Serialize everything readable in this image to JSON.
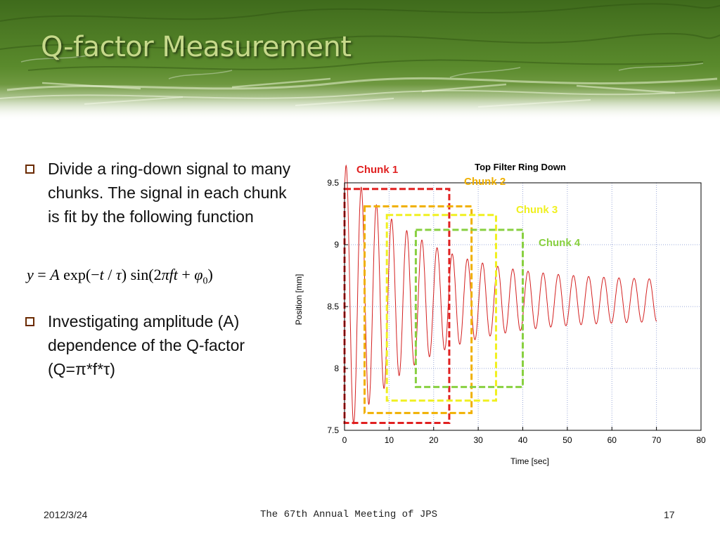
{
  "slide": {
    "title": "Q-factor Measurement",
    "bullets": [
      "Divide a ring-down signal to many chunks. The signal in each chunk is fit by the following function",
      "Investigating amplitude (A) dependence of the Q-factor (Q=π*f*τ)"
    ],
    "formula": "y = A exp(−t / τ) sin(2πft + φ0)",
    "footer": {
      "date": "2012/3/24",
      "meeting": "The 67th Annual Meeting of JPS",
      "page": "17"
    }
  },
  "chart_data": {
    "type": "line",
    "title": "Top Filter Ring Down",
    "xlabel": "Time [sec]",
    "ylabel": "Position [mm]",
    "xlim": [
      0,
      80
    ],
    "ylim": [
      7.5,
      9.5
    ],
    "xticks": [
      0,
      10,
      20,
      30,
      40,
      50,
      60,
      70,
      80
    ],
    "yticks": [
      7.5,
      8,
      8.5,
      9,
      9.5
    ],
    "grid": true,
    "series": [
      {
        "color": "#d42020",
        "signal": {
          "t_start": 0,
          "t_end": 70,
          "offset": 8.55,
          "amplitude": 0.95,
          "tau_sec": 16.3,
          "frequency_hz": 0.294,
          "phase_rad": 0.9,
          "floor_amplitude": 0.16
        }
      }
    ],
    "chunks": [
      {
        "label": "Chunk 1",
        "color": "#e02020",
        "x_range": [
          0,
          23.5
        ],
        "y_range": [
          7.56,
          9.45
        ]
      },
      {
        "label": "Chunk 2",
        "color": "#f0b000",
        "x_range": [
          4.5,
          28.5
        ],
        "y_range": [
          7.64,
          9.31
        ]
      },
      {
        "label": "Chunk 3",
        "color": "#f0f020",
        "x_range": [
          9.5,
          34
        ],
        "y_range": [
          7.74,
          9.24
        ]
      },
      {
        "label": "Chunk 4",
        "color": "#88d040",
        "x_range": [
          16,
          40
        ],
        "y_range": [
          7.85,
          9.12
        ]
      }
    ]
  }
}
